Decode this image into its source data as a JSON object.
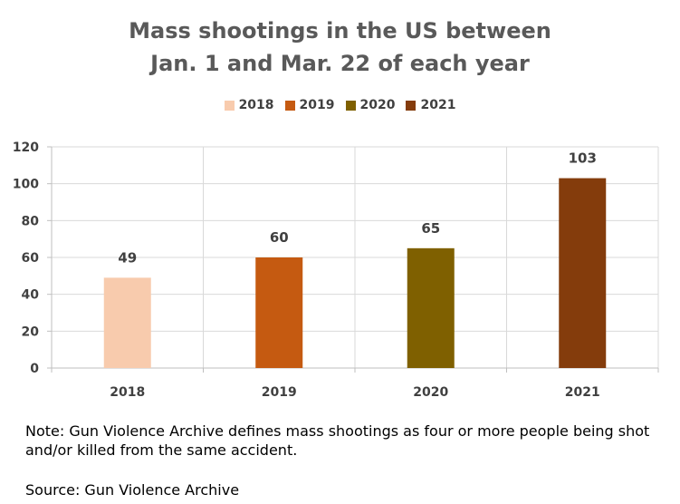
{
  "chart_data": {
    "type": "bar",
    "title_lines": [
      "Mass shootings in the US between",
      "Jan. 1 and Mar. 22 of each year"
    ],
    "categories": [
      "2018",
      "2019",
      "2020",
      "2021"
    ],
    "values": [
      49,
      60,
      65,
      103
    ],
    "colors": [
      "#F8CBAD",
      "#C55A11",
      "#7F6000",
      "#843C0C"
    ],
    "legend": [
      "2018",
      "2019",
      "2020",
      "2021"
    ],
    "legend_position": "top",
    "yticks": [
      "0",
      "20",
      "40",
      "60",
      "80",
      "100",
      "120"
    ],
    "ylim": [
      0,
      120
    ],
    "grid": true
  },
  "footer": {
    "note": "Note: Gun Violence Archive defines mass shootings as four or more people being shot and/or killed from the same accident.",
    "source": "Source: Gun Violence Archive"
  }
}
